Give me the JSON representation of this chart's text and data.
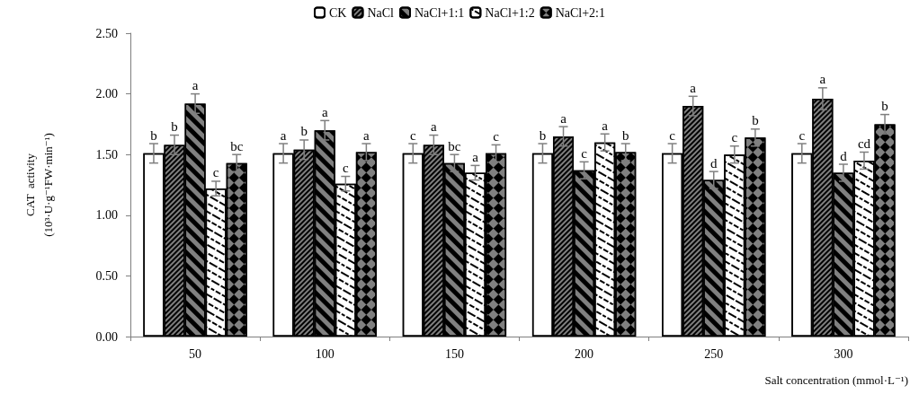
{
  "chart_data": {
    "type": "bar",
    "xlabel": "Salt concentration (mmol·L⁻¹)",
    "ylabel": "CAT  activity\n(10³·U·g⁻¹FW·min⁻¹)",
    "categories": [
      "50",
      "100",
      "150",
      "200",
      "250",
      "300"
    ],
    "series": [
      {
        "name": "CK",
        "color": "#ffffff",
        "values": [
          1.51,
          1.51,
          1.51,
          1.51,
          1.51,
          1.51
        ],
        "errors": [
          0.08,
          0.08,
          0.08,
          0.08,
          0.08,
          0.08
        ],
        "value_labels": [
          "b",
          "a",
          "c",
          "b",
          "c",
          "c"
        ]
      },
      {
        "name": "NaCl",
        "color": "#808080",
        "values": [
          1.58,
          1.54,
          1.58,
          1.65,
          1.9,
          1.96
        ],
        "errors": [
          0.08,
          0.08,
          0.08,
          0.08,
          0.08,
          0.09
        ],
        "value_labels": [
          "b",
          "b",
          "a",
          "a",
          "a",
          "a"
        ]
      },
      {
        "name": "NaCl+1:1",
        "color": "#808080",
        "values": [
          1.92,
          1.7,
          1.43,
          1.37,
          1.29,
          1.35
        ],
        "errors": [
          0.08,
          0.08,
          0.07,
          0.07,
          0.07,
          0.07
        ],
        "value_labels": [
          "a",
          "a",
          "bc",
          "c",
          "d",
          "d"
        ]
      },
      {
        "name": "NaCl+1:2",
        "color": "#ffffff",
        "values": [
          1.22,
          1.26,
          1.35,
          1.6,
          1.5,
          1.45
        ],
        "errors": [
          0.06,
          0.06,
          0.06,
          0.07,
          0.07,
          0.07
        ],
        "value_labels": [
          "c",
          "c",
          "a",
          "a",
          "c",
          "cd"
        ]
      },
      {
        "name": "NaCl+2:1",
        "color": "#808080",
        "values": [
          1.43,
          1.52,
          1.51,
          1.52,
          1.64,
          1.75
        ],
        "errors": [
          0.07,
          0.07,
          0.07,
          0.07,
          0.07,
          0.08
        ],
        "value_labels": [
          "bc",
          "a",
          "c",
          "b",
          "b",
          "b"
        ]
      }
    ],
    "ylim": [
      0,
      2.5
    ],
    "yticks": [
      {
        "value": 0,
        "label": "0.00"
      },
      {
        "value": 0.5,
        "label": "0.50"
      },
      {
        "value": 1,
        "label": "1.00"
      },
      {
        "value": 1.5,
        "label": "1.50"
      },
      {
        "value": 2,
        "label": "2.00"
      },
      {
        "value": 2.5,
        "label": "2.50"
      }
    ],
    "grid": false,
    "legend": "top"
  }
}
